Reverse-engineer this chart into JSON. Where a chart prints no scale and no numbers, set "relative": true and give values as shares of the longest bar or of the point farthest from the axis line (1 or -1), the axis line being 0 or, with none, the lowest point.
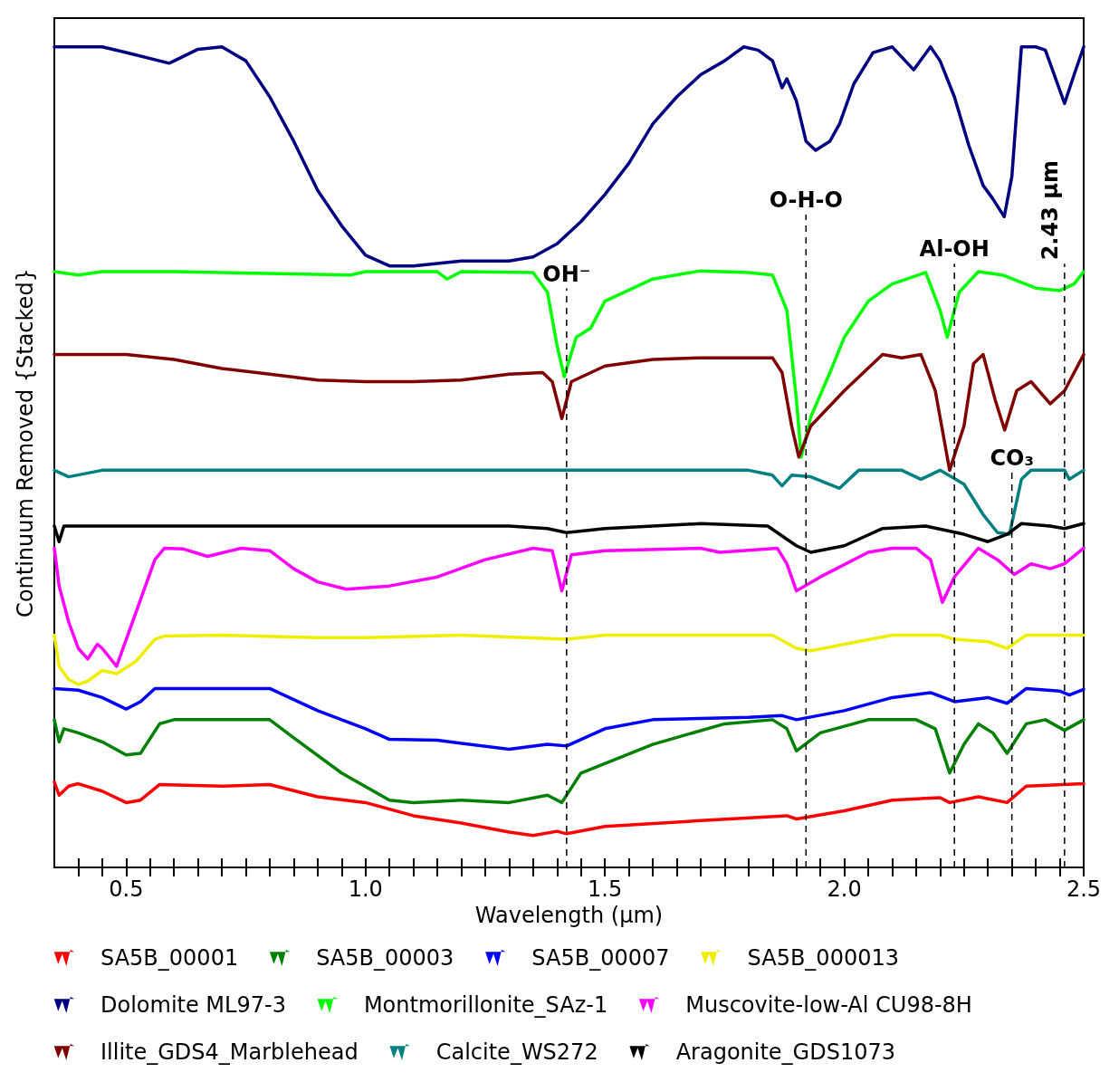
{
  "chart_data": {
    "type": "line",
    "relative": true,
    "xlabel": "Wavelength (µm)",
    "ylabel": "Continuum Removed {Stacked}",
    "xlim": [
      0.35,
      2.5
    ],
    "xticks": [
      {
        "value": 0.4,
        "label": null
      },
      {
        "value": 0.45,
        "label": null
      },
      0.5,
      {
        "value": 0.55,
        "label": null
      },
      {
        "value": 0.6,
        "label": null
      },
      {
        "value": 0.65,
        "label": null
      },
      {
        "value": 0.7,
        "label": null
      },
      {
        "value": 0.75,
        "label": null
      },
      {
        "value": 0.8,
        "label": null
      },
      {
        "value": 0.85,
        "label": null
      },
      {
        "value": 0.9,
        "label": null
      },
      {
        "value": 0.95,
        "label": null
      },
      {
        "value": 1,
        "label": "1.0"
      },
      {
        "value": 1.05,
        "label": null
      },
      {
        "value": 1.1,
        "label": null
      },
      {
        "value": 1.15,
        "label": null
      },
      {
        "value": 1.2,
        "label": null
      },
      {
        "value": 1.25,
        "label": null
      },
      {
        "value": 1.3,
        "label": null
      },
      {
        "value": 1.35,
        "label": null
      },
      {
        "value": 1.4,
        "label": null
      },
      {
        "value": 1.45,
        "label": null
      },
      1.5,
      {
        "value": 1.55,
        "label": null
      },
      {
        "value": 1.6,
        "label": null
      },
      {
        "value": 1.65,
        "label": null
      },
      {
        "value": 1.7,
        "label": null
      },
      {
        "value": 1.75,
        "label": null
      },
      {
        "value": 1.8,
        "label": null
      },
      {
        "value": 1.85,
        "label": null
      },
      {
        "value": 1.9,
        "label": null
      },
      {
        "value": 1.95,
        "label": null
      },
      {
        "value": 2,
        "label": "2.0"
      },
      {
        "value": 2.05,
        "label": null
      },
      {
        "value": 2.1,
        "label": null
      },
      {
        "value": 2.15,
        "label": null
      },
      {
        "value": 2.2,
        "label": null
      },
      {
        "value": 2.25,
        "label": null
      },
      {
        "value": 2.3,
        "label": null
      },
      {
        "value": 2.35,
        "label": null
      },
      {
        "value": 2.4,
        "label": null
      },
      {
        "value": 2.45,
        "label": null
      },
      2.5
    ],
    "grid": false,
    "legend": "bottom",
    "marker": "none",
    "line_style": "solid",
    "series": [
      {
        "name": "SA5B_00001",
        "color": "#ff0000",
        "x": [
          0.35,
          0.36,
          0.38,
          0.4,
          0.45,
          0.5,
          0.53,
          0.57,
          0.7,
          0.8,
          0.9,
          1.0,
          1.1,
          1.2,
          1.3,
          1.35,
          1.4,
          1.42,
          1.5,
          1.7,
          1.88,
          1.9,
          2.0,
          2.1,
          2.2,
          2.22,
          2.28,
          2.34,
          2.38,
          2.5
        ],
        "values": [
          0.104,
          0.088,
          0.099,
          0.102,
          0.093,
          0.079,
          0.082,
          0.101,
          0.099,
          0.101,
          0.086,
          0.079,
          0.063,
          0.054,
          0.043,
          0.039,
          0.044,
          0.041,
          0.05,
          0.057,
          0.063,
          0.059,
          0.069,
          0.082,
          0.085,
          0.079,
          0.086,
          0.079,
          0.099,
          0.102
        ]
      },
      {
        "name": "SA5B_00003",
        "color": "#008000",
        "x": [
          0.35,
          0.36,
          0.37,
          0.4,
          0.45,
          0.5,
          0.53,
          0.57,
          0.6,
          0.8,
          0.85,
          0.95,
          1.05,
          1.1,
          1.2,
          1.3,
          1.38,
          1.41,
          1.45,
          1.6,
          1.75,
          1.85,
          1.88,
          1.9,
          1.95,
          2.05,
          2.15,
          2.19,
          2.22,
          2.25,
          2.28,
          2.31,
          2.34,
          2.38,
          2.42,
          2.46,
          2.5
        ],
        "values": [
          0.18,
          0.153,
          0.169,
          0.164,
          0.153,
          0.137,
          0.139,
          0.175,
          0.18,
          0.18,
          0.158,
          0.115,
          0.082,
          0.079,
          0.082,
          0.079,
          0.088,
          0.079,
          0.115,
          0.15,
          0.175,
          0.18,
          0.169,
          0.142,
          0.164,
          0.18,
          0.18,
          0.169,
          0.115,
          0.15,
          0.175,
          0.164,
          0.139,
          0.175,
          0.18,
          0.167,
          0.18
        ]
      },
      {
        "name": "SA5B_00007",
        "color": "#0000ff",
        "x": [
          0.35,
          0.4,
          0.45,
          0.5,
          0.53,
          0.56,
          0.6,
          0.7,
          0.8,
          0.9,
          1.0,
          1.05,
          1.15,
          1.3,
          1.38,
          1.42,
          1.5,
          1.6,
          1.8,
          1.87,
          1.9,
          2.0,
          2.1,
          2.18,
          2.23,
          2.3,
          2.34,
          2.38,
          2.45,
          2.47,
          2.5
        ],
        "values": [
          0.218,
          0.216,
          0.207,
          0.193,
          0.202,
          0.218,
          0.218,
          0.218,
          0.218,
          0.191,
          0.169,
          0.156,
          0.155,
          0.144,
          0.15,
          0.148,
          0.169,
          0.18,
          0.183,
          0.185,
          0.18,
          0.191,
          0.207,
          0.213,
          0.202,
          0.207,
          0.2,
          0.218,
          0.215,
          0.21,
          0.217
        ]
      },
      {
        "name": "SA5B_000013",
        "color": "#eeee00",
        "x": [
          0.35,
          0.36,
          0.38,
          0.4,
          0.42,
          0.45,
          0.48,
          0.52,
          0.56,
          0.58,
          0.7,
          0.9,
          1.0,
          1.2,
          1.42,
          1.5,
          1.85,
          1.9,
          1.93,
          2.0,
          2.1,
          2.2,
          2.23,
          2.3,
          2.34,
          2.38,
          2.5
        ],
        "values": [
          0.283,
          0.245,
          0.229,
          0.223,
          0.227,
          0.24,
          0.236,
          0.251,
          0.278,
          0.282,
          0.283,
          0.28,
          0.28,
          0.283,
          0.278,
          0.283,
          0.283,
          0.267,
          0.264,
          0.272,
          0.283,
          0.283,
          0.278,
          0.275,
          0.267,
          0.283,
          0.283
        ]
      },
      {
        "name": "Dolomite ML97-3",
        "color": "#000080",
        "x": [
          0.35,
          0.45,
          0.5,
          0.59,
          0.65,
          0.7,
          0.75,
          0.8,
          0.85,
          0.9,
          0.95,
          1.0,
          1.05,
          1.1,
          1.2,
          1.3,
          1.35,
          1.4,
          1.45,
          1.5,
          1.55,
          1.6,
          1.65,
          1.7,
          1.75,
          1.79,
          1.82,
          1.85,
          1.87,
          1.88,
          1.9,
          1.92,
          1.94,
          1.97,
          1.99,
          2.02,
          2.06,
          2.1,
          2.145,
          2.18,
          2.2,
          2.23,
          2.26,
          2.29,
          2.31,
          2.334,
          2.35,
          2.37,
          2.4,
          2.42,
          2.46,
          2.48,
          2.5
        ],
        "values": [
          1.0,
          1.0,
          0.993,
          0.98,
          0.997,
          1.0,
          0.983,
          0.939,
          0.885,
          0.825,
          0.782,
          0.746,
          0.733,
          0.733,
          0.739,
          0.739,
          0.744,
          0.76,
          0.787,
          0.82,
          0.858,
          0.906,
          0.939,
          0.966,
          0.983,
          1.0,
          0.996,
          0.983,
          0.95,
          0.961,
          0.934,
          0.885,
          0.874,
          0.885,
          0.906,
          0.955,
          0.993,
          1.0,
          0.972,
          1.0,
          0.983,
          0.939,
          0.88,
          0.831,
          0.815,
          0.793,
          0.842,
          1.0,
          1.0,
          0.996,
          0.931,
          0.966,
          1.0
        ]
      },
      {
        "name": "Montmorillonite_SAz-1",
        "color": "#00ff00",
        "x": [
          0.35,
          0.4,
          0.45,
          0.6,
          0.97,
          1.0,
          1.15,
          1.17,
          1.2,
          1.35,
          1.38,
          1.4,
          1.415,
          1.44,
          1.47,
          1.5,
          1.6,
          1.7,
          1.8,
          1.85,
          1.88,
          1.9,
          1.91,
          1.93,
          1.97,
          2.0,
          2.05,
          2.1,
          2.17,
          2.2,
          2.215,
          2.24,
          2.28,
          2.33,
          2.4,
          2.45,
          2.48,
          2.5
        ],
        "values": [
          0.726,
          0.722,
          0.726,
          0.726,
          0.722,
          0.726,
          0.726,
          0.717,
          0.726,
          0.725,
          0.701,
          0.636,
          0.598,
          0.646,
          0.657,
          0.69,
          0.717,
          0.727,
          0.725,
          0.722,
          0.679,
          0.57,
          0.5,
          0.549,
          0.603,
          0.646,
          0.69,
          0.711,
          0.725,
          0.679,
          0.646,
          0.701,
          0.726,
          0.722,
          0.706,
          0.703,
          0.711,
          0.726
        ]
      },
      {
        "name": "Muscovite-low-Al CU98-8H",
        "color": "#ff00ff",
        "x": [
          0.35,
          0.36,
          0.38,
          0.4,
          0.42,
          0.44,
          0.45,
          0.48,
          0.52,
          0.56,
          0.58,
          0.62,
          0.67,
          0.74,
          0.8,
          0.85,
          0.9,
          0.96,
          1.05,
          1.15,
          1.25,
          1.35,
          1.39,
          1.41,
          1.43,
          1.5,
          1.7,
          1.74,
          1.86,
          1.88,
          1.9,
          1.95,
          2.05,
          2.1,
          2.15,
          2.18,
          2.205,
          2.23,
          2.28,
          2.32,
          2.355,
          2.39,
          2.43,
          2.46,
          2.5
        ],
        "values": [
          0.389,
          0.343,
          0.299,
          0.267,
          0.254,
          0.272,
          0.267,
          0.245,
          0.31,
          0.375,
          0.389,
          0.388,
          0.379,
          0.389,
          0.386,
          0.364,
          0.348,
          0.339,
          0.343,
          0.354,
          0.375,
          0.389,
          0.386,
          0.337,
          0.381,
          0.386,
          0.389,
          0.384,
          0.389,
          0.37,
          0.337,
          0.354,
          0.384,
          0.389,
          0.389,
          0.375,
          0.323,
          0.354,
          0.389,
          0.375,
          0.357,
          0.37,
          0.364,
          0.37,
          0.389
        ]
      },
      {
        "name": "Illite_GDS4_Marblehead",
        "color": "#800000",
        "x": [
          0.35,
          0.4,
          0.5,
          0.6,
          0.7,
          0.8,
          0.9,
          1.0,
          1.1,
          1.2,
          1.3,
          1.37,
          1.39,
          1.41,
          1.43,
          1.5,
          1.6,
          1.7,
          1.85,
          1.87,
          1.89,
          1.905,
          1.93,
          2.0,
          2.08,
          2.12,
          2.16,
          2.19,
          2.22,
          2.25,
          2.27,
          2.29,
          2.315,
          2.335,
          2.36,
          2.39,
          2.43,
          2.46,
          2.5
        ],
        "values": [
          0.625,
          0.625,
          0.625,
          0.619,
          0.608,
          0.601,
          0.594,
          0.592,
          0.592,
          0.594,
          0.601,
          0.603,
          0.592,
          0.547,
          0.592,
          0.611,
          0.619,
          0.621,
          0.621,
          0.603,
          0.538,
          0.5,
          0.538,
          0.581,
          0.625,
          0.621,
          0.625,
          0.581,
          0.484,
          0.538,
          0.614,
          0.625,
          0.57,
          0.533,
          0.581,
          0.592,
          0.565,
          0.581,
          0.625
        ]
      },
      {
        "name": "Calcite_WS272",
        "color": "#008080",
        "x": [
          0.35,
          0.38,
          0.45,
          1.8,
          1.85,
          1.87,
          1.89,
          1.93,
          1.99,
          2.03,
          2.12,
          2.16,
          2.2,
          2.25,
          2.29,
          2.32,
          2.345,
          2.37,
          2.39,
          2.46,
          2.47,
          2.5
        ],
        "values": [
          0.484,
          0.476,
          0.484,
          0.484,
          0.478,
          0.465,
          0.478,
          0.476,
          0.462,
          0.484,
          0.484,
          0.473,
          0.484,
          0.467,
          0.43,
          0.408,
          0.406,
          0.473,
          0.484,
          0.484,
          0.473,
          0.484
        ]
      },
      {
        "name": "Aragonite_GDS1073",
        "color": "#000000",
        "x": [
          0.35,
          0.36,
          0.37,
          1.3,
          1.38,
          1.42,
          1.5,
          1.7,
          1.84,
          1.9,
          1.93,
          2.0,
          2.08,
          2.17,
          2.25,
          2.3,
          2.34,
          2.37,
          2.43,
          2.46,
          2.5
        ],
        "values": [
          0.416,
          0.397,
          0.416,
          0.416,
          0.413,
          0.408,
          0.413,
          0.419,
          0.416,
          0.392,
          0.384,
          0.392,
          0.413,
          0.416,
          0.406,
          0.397,
          0.406,
          0.419,
          0.416,
          0.413,
          0.419
        ]
      }
    ],
    "ref_lines": [
      {
        "axis": "x",
        "value": 1.42,
        "line_style": "dashed",
        "color": "#000000"
      },
      {
        "axis": "x",
        "value": 1.92,
        "line_style": "dashed",
        "color": "#000000"
      },
      {
        "axis": "x",
        "value": 2.23,
        "line_style": "dashed",
        "color": "#000000"
      },
      {
        "axis": "x",
        "value": 2.35,
        "line_style": "dashed",
        "color": "#000000"
      },
      {
        "axis": "x",
        "value": 2.46,
        "line_style": "dashed",
        "color": "#000000"
      }
    ],
    "annotations": [
      {
        "text": "OH⁻",
        "x": 1.42,
        "y": 0.71
      },
      {
        "text": "O-H-O",
        "x": 1.92,
        "y": 0.8
      },
      {
        "text": "Al-OH",
        "x": 2.23,
        "y": 0.74
      },
      {
        "text": "CO₃",
        "x": 2.35,
        "y": 0.486
      },
      {
        "text": "2.43 µm",
        "x": 2.46,
        "y": 0.74
      }
    ]
  }
}
